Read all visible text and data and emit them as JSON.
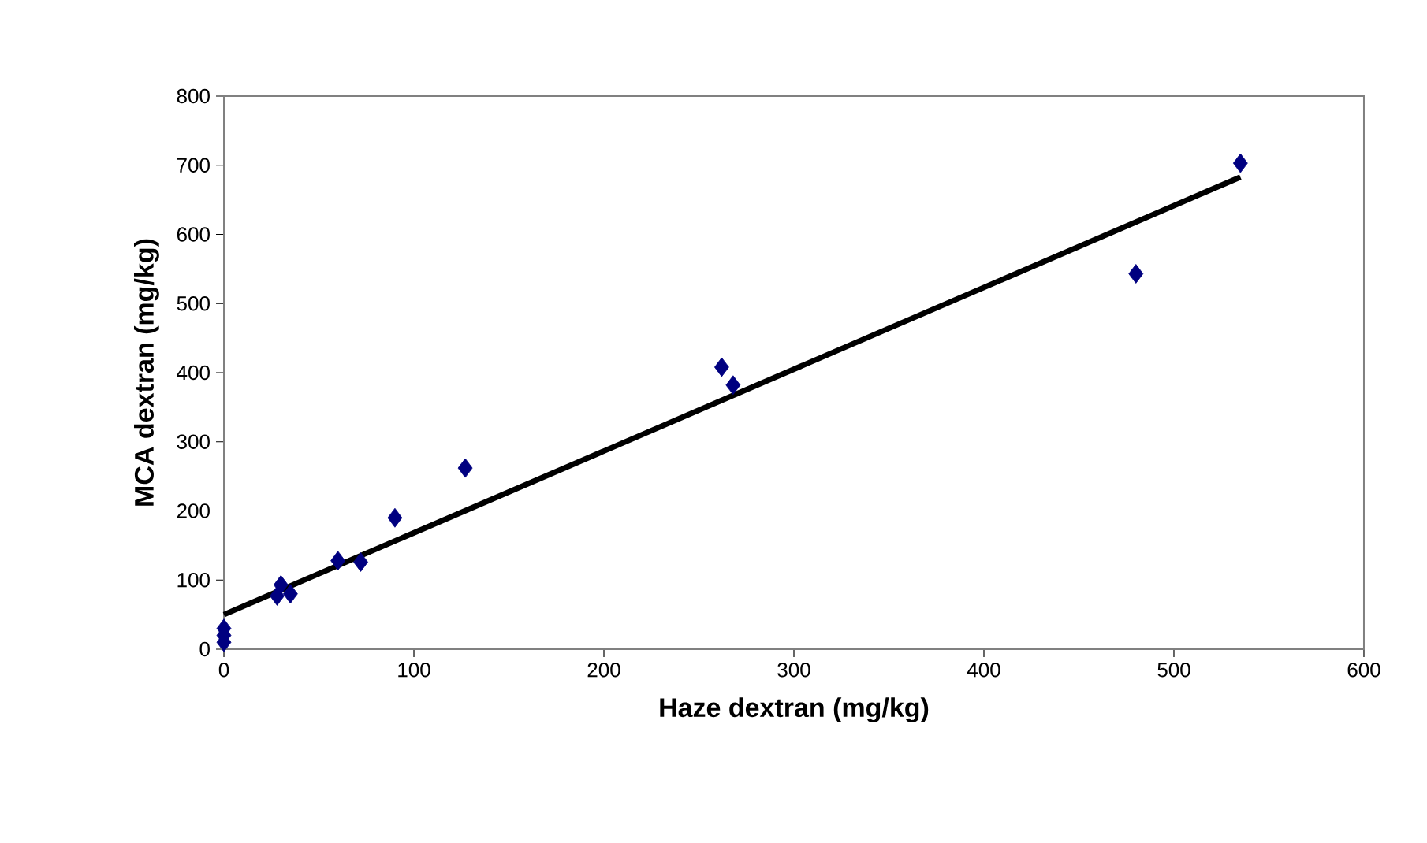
{
  "chart_data": {
    "type": "scatter",
    "xlabel": "Haze dextran (mg/kg)",
    "ylabel": "MCA dextran (mg/kg)",
    "xlim": [
      0,
      600
    ],
    "ylim": [
      0,
      800
    ],
    "xticks": [
      0,
      100,
      200,
      300,
      400,
      500,
      600
    ],
    "yticks": [
      0,
      100,
      200,
      300,
      400,
      500,
      600,
      700,
      800
    ],
    "grid": false,
    "series": [
      {
        "marker": "diamond",
        "color": "#000080",
        "x": [
          0,
          0,
          0,
          28,
          30,
          35,
          60,
          72,
          90,
          127,
          262,
          268,
          480,
          535
        ],
        "values": [
          30,
          20,
          10,
          77,
          93,
          80,
          128,
          126,
          190,
          262,
          408,
          382,
          543,
          703
        ]
      },
      {
        "type": "line",
        "marker": "none",
        "color": "#000000",
        "x": [
          0,
          535
        ],
        "values": [
          50,
          683
        ]
      }
    ]
  }
}
